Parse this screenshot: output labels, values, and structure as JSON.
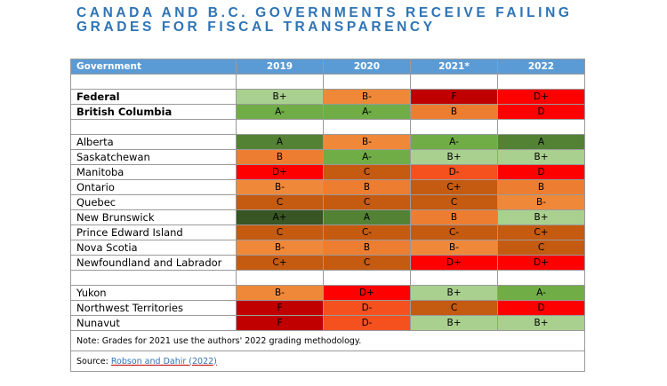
{
  "title_line1": "CANADA AND B.C. GOVERNMENTS RECEIVE FAILING",
  "title_line2": "GRADES FOR FISCAL TRANSPARENCY",
  "header": [
    "Government",
    "2019",
    "2020",
    "2021*",
    "2022"
  ],
  "colors": {
    "A+": "#375623",
    "A": "#548235",
    "A-": "#70ad47",
    "B+": "#a9d08e",
    "B": "#ed7d31",
    "B-": "#f0883a",
    "C+": "#c55a11",
    "C": "#c55a11",
    "C-": "#c55a11",
    "D+": "#ff0000",
    "D": "#ff0000",
    "D-": "#f4511e",
    "F": "#c00000",
    "header": "#5b9bd5",
    "title": "#2e74b5"
  },
  "groups": [
    {
      "rows": [
        {
          "name": "Federal",
          "bold": true,
          "grades": [
            "B+",
            "B-",
            "F",
            "D+"
          ]
        },
        {
          "name": "British Columbia",
          "bold": true,
          "grades": [
            "A-",
            "A-",
            "B",
            "D"
          ]
        }
      ]
    },
    {
      "rows": [
        {
          "name": "Alberta",
          "grades": [
            "A",
            "B-",
            "A-",
            "A"
          ]
        },
        {
          "name": "Saskatchewan",
          "grades": [
            "B",
            "A-",
            "B+",
            "B+"
          ]
        },
        {
          "name": "Manitoba",
          "grades": [
            "D+",
            "C",
            "D-",
            "D"
          ]
        },
        {
          "name": "Ontario",
          "grades": [
            "B-",
            "B",
            "C+",
            "B"
          ]
        },
        {
          "name": "Quebec",
          "grades": [
            "C",
            "C",
            "C",
            "B-"
          ]
        },
        {
          "name": "New Brunswick",
          "grades": [
            "A+",
            "A",
            "B",
            "B+"
          ]
        },
        {
          "name": "Prince Edward Island",
          "grades": [
            "C",
            "C-",
            "C-",
            "C+"
          ]
        },
        {
          "name": "Nova Scotia",
          "grades": [
            "B-",
            "B",
            "B-",
            "C"
          ]
        },
        {
          "name": "Newfoundland and Labrador",
          "grades": [
            "C+",
            "C",
            "D+",
            "D+"
          ]
        }
      ]
    },
    {
      "rows": [
        {
          "name": "Yukon",
          "grades": [
            "B-",
            "D+",
            "B+",
            "A-"
          ]
        },
        {
          "name": "Northwest Territories",
          "grades": [
            "F",
            "D-",
            "C",
            "D"
          ]
        },
        {
          "name": "Nunavut",
          "grades": [
            "F",
            "D-",
            "B+",
            "B+"
          ]
        }
      ]
    }
  ],
  "note": "Note: Grades for 2021 use the authors' 2022 grading methodology.",
  "source_label": "Source: ",
  "source_link": "Robson and Dahir (2022)"
}
